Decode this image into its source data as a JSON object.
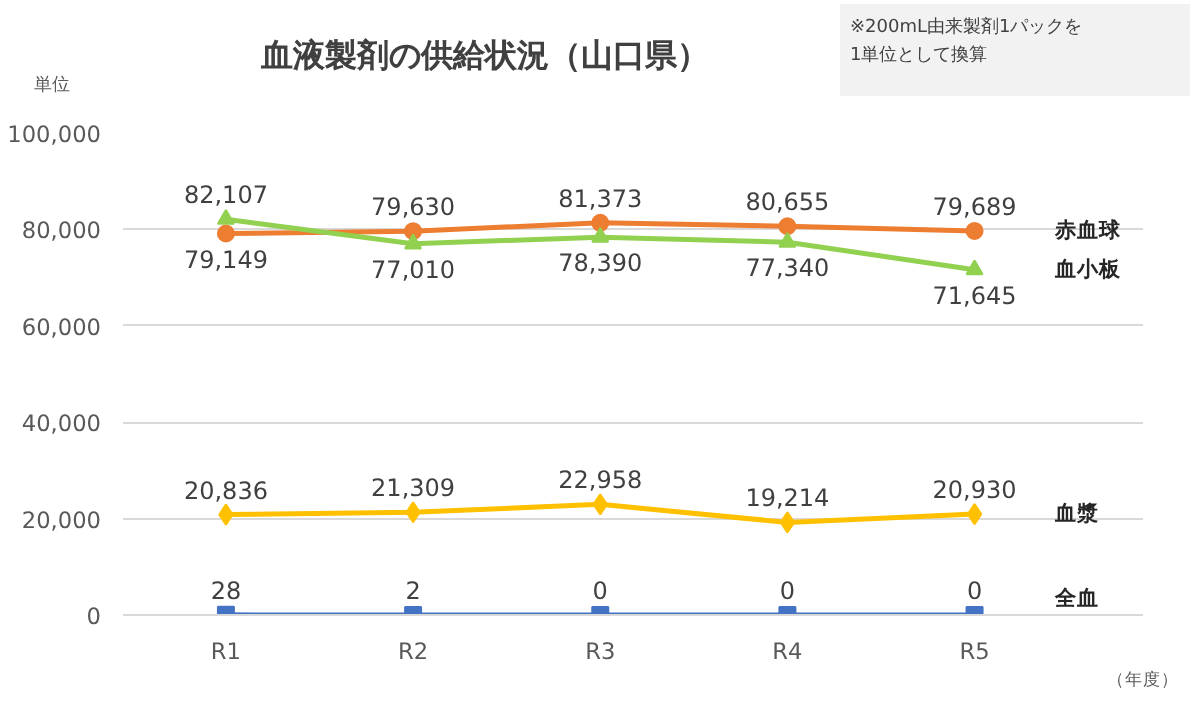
{
  "chart_data": {
    "type": "line",
    "title": "血液製剤の供給状況（山口県）",
    "ylabel": "単位",
    "xlabel": "（年度）",
    "categories": [
      "R1",
      "R2",
      "R3",
      "R4",
      "R5"
    ],
    "series": [
      {
        "name": "赤血球",
        "color": "#ed7d31",
        "marker": "circle",
        "values": [
          79149,
          79630,
          81373,
          80655,
          79689
        ],
        "value_labels": [
          "79,149",
          "79,630",
          "81,373",
          "80,655",
          "79,689"
        ]
      },
      {
        "name": "血小板",
        "color": "#92d050",
        "marker": "triangle",
        "values": [
          82107,
          77010,
          78390,
          77340,
          71645
        ],
        "value_labels": [
          "82,107",
          "77,010",
          "78,390",
          "77,340",
          "71,645"
        ]
      },
      {
        "name": "血漿",
        "color": "#ffc000",
        "marker": "diamond",
        "values": [
          20836,
          21309,
          22958,
          19214,
          20930
        ],
        "value_labels": [
          "20,836",
          "21,309",
          "22,958",
          "19,214",
          "20,930"
        ]
      },
      {
        "name": "全血",
        "color": "#4472c4",
        "marker": "square",
        "values": [
          28,
          2,
          0,
          0,
          0
        ],
        "value_labels": [
          "28",
          "2",
          "0",
          "0",
          "0"
        ]
      }
    ],
    "ylim": [
      0,
      100000
    ],
    "yticks": [
      {
        "value": 0,
        "label": "0"
      },
      {
        "value": 20000,
        "label": "20,000"
      },
      {
        "value": 40000,
        "label": "40,000"
      },
      {
        "value": 60000,
        "label": "60,000"
      },
      {
        "value": 80000,
        "label": "80,000"
      },
      {
        "value": 100000,
        "label": "100,000"
      }
    ],
    "grid": "y",
    "annotations": [
      "※200mL由来製剤1パックを\n1単位として換算"
    ]
  }
}
